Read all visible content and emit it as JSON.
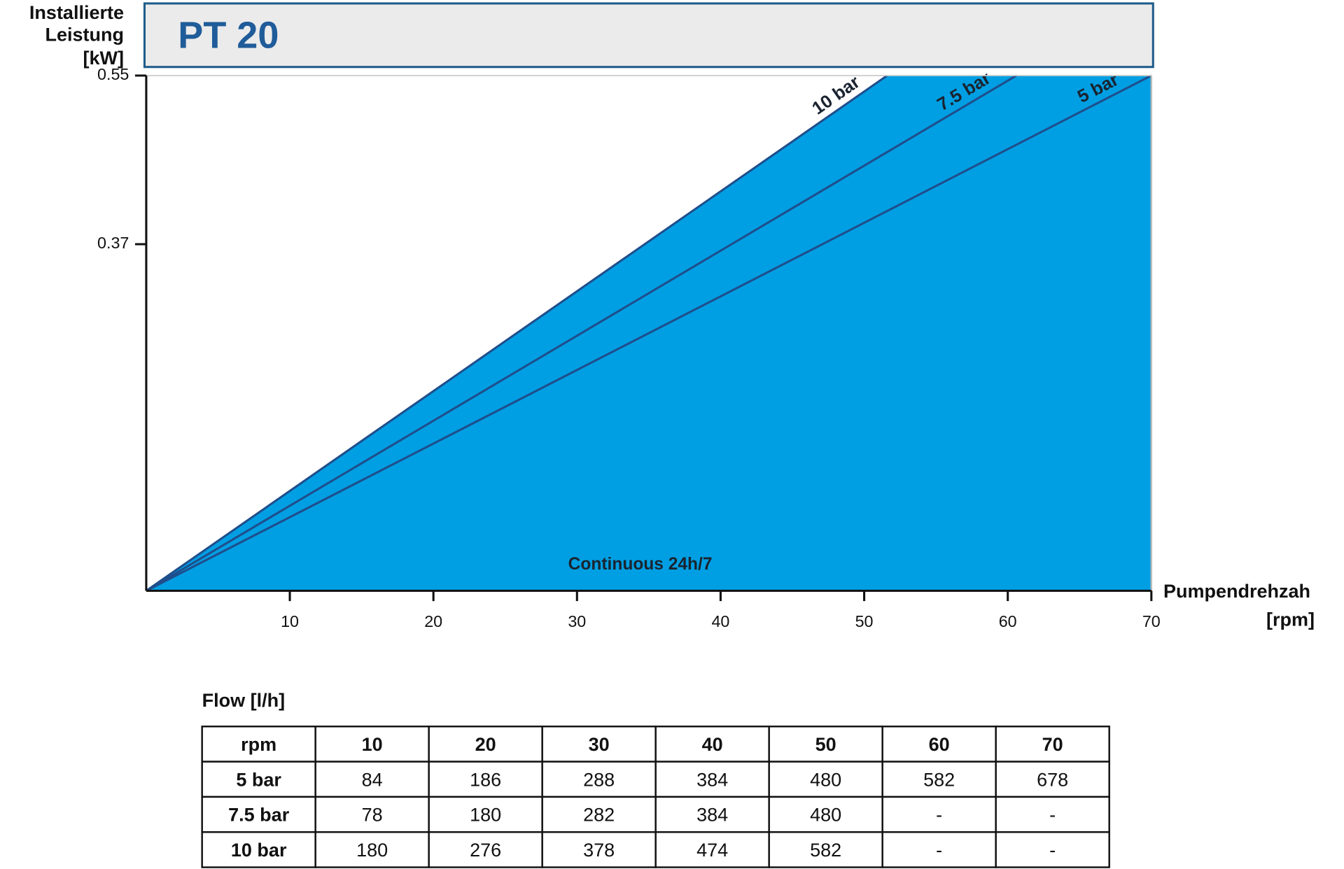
{
  "chart_data": {
    "type": "area",
    "title": "PT 20",
    "y_label": [
      "Installierte",
      "Leistung",
      "[kW]"
    ],
    "x_label": [
      "Pumpendrehzah",
      "[rpm]"
    ],
    "xlim": [
      0,
      70
    ],
    "xticks": [
      10,
      20,
      30,
      40,
      50,
      60,
      70
    ],
    "ylim": [
      0,
      0.55
    ],
    "yticks": [
      0.37,
      0.55
    ],
    "fill_color": "#009fe3",
    "line_color": "#1f4e8c",
    "series": [
      {
        "name": "10 bar",
        "x": [
          0,
          51.6
        ],
        "values": [
          0,
          0.55
        ]
      },
      {
        "name": "7.5 bar",
        "x": [
          0,
          60.6
        ],
        "values": [
          0,
          0.55
        ]
      },
      {
        "name": "5 bar",
        "x": [
          0,
          70
        ],
        "values": [
          0,
          0.55
        ]
      }
    ],
    "annotation": "Continuous 24h/7"
  },
  "table": {
    "caption": "Flow [l/h]",
    "header": [
      "rpm",
      "10",
      "20",
      "30",
      "40",
      "50",
      "60",
      "70"
    ],
    "rows": [
      [
        "5 bar",
        "84",
        "186",
        "288",
        "384",
        "480",
        "582",
        "678"
      ],
      [
        "7.5 bar",
        "78",
        "180",
        "282",
        "384",
        "480",
        "-",
        "-"
      ],
      [
        "10 bar",
        "180",
        "276",
        "378",
        "474",
        "582",
        "-",
        "-"
      ]
    ]
  }
}
